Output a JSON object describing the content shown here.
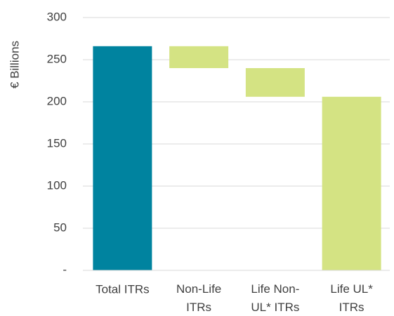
{
  "chart_data": {
    "type": "waterfall",
    "y_label": "€ Billions",
    "categories": [
      "Total ITRs",
      "Non-Life ITRs",
      "Life Non-UL* ITRs",
      "Life UL* ITRs"
    ],
    "values": [
      266,
      -26,
      -34,
      206
    ],
    "kinds": [
      "total",
      "relative",
      "relative",
      "total"
    ],
    "colors": [
      "#00839f",
      "#d4e383",
      "#d4e383",
      "#d4e383"
    ],
    "ylim": [
      0,
      300
    ],
    "yticks": [
      {
        "value": 0,
        "label": "-"
      },
      50,
      100,
      150,
      200,
      250,
      300
    ],
    "grid": true
  }
}
